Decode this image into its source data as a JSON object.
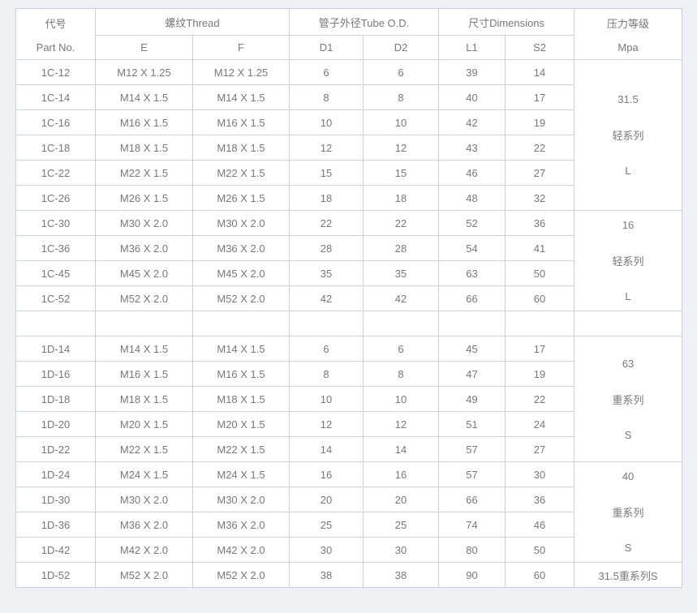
{
  "page": {
    "background": "#edf1f5",
    "table_background": "#ffffff",
    "border_color": "#ccd1d6",
    "text_color": "#787878"
  },
  "table": {
    "header": {
      "part_no": [
        "代号",
        "Part No."
      ],
      "thread": "螺纹Thread",
      "tube_od": "管子外径Tube O.D.",
      "dimensions": "尺寸Dimensions",
      "pressure": [
        "压力等级",
        "Mpa"
      ],
      "sub": [
        "E",
        "F",
        "D1",
        "D2",
        "L1",
        "S2"
      ]
    },
    "rows": [
      {
        "part": "1C-12",
        "e": "M12 X 1.25",
        "f": "M12 X 1.25",
        "d1": "6",
        "d2": "6",
        "l1": "39",
        "s2": "14",
        "pressure": {
          "rowspan": 6,
          "lines": [
            "31.5",
            "轻系列",
            "L"
          ]
        }
      },
      {
        "part": "1C-14",
        "e": "M14 X 1.5",
        "f": "M14 X 1.5",
        "d1": "8",
        "d2": "8",
        "l1": "40",
        "s2": "17"
      },
      {
        "part": "1C-16",
        "e": "M16 X 1.5",
        "f": "M16 X 1.5",
        "d1": "10",
        "d2": "10",
        "l1": "42",
        "s2": "19"
      },
      {
        "part": "1C-18",
        "e": "M18 X 1.5",
        "f": "M18 X 1.5",
        "d1": "12",
        "d2": "12",
        "l1": "43",
        "s2": "22"
      },
      {
        "part": "1C-22",
        "e": "M22 X 1.5",
        "f": "M22 X 1.5",
        "d1": "15",
        "d2": "15",
        "l1": "46",
        "s2": "27"
      },
      {
        "part": "1C-26",
        "e": "M26 X 1.5",
        "f": "M26 X 1.5",
        "d1": "18",
        "d2": "18",
        "l1": "48",
        "s2": "32"
      },
      {
        "part": "1C-30",
        "e": "M30 X 2.0",
        "f": "M30 X 2.0",
        "d1": "22",
        "d2": "22",
        "l1": "52",
        "s2": "36",
        "pressure": {
          "rowspan": 4,
          "lines": [
            "16",
            "轻系列",
            "L"
          ]
        }
      },
      {
        "part": "1C-36",
        "e": "M36 X 2.0",
        "f": "M36 X 2.0",
        "d1": "28",
        "d2": "28",
        "l1": "54",
        "s2": "41"
      },
      {
        "part": "1C-45",
        "e": "M45 X 2.0",
        "f": "M45 X 2.0",
        "d1": "35",
        "d2": "35",
        "l1": "63",
        "s2": "50"
      },
      {
        "part": "1C-52",
        "e": "M52 X 2.0",
        "f": "M52 X 2.0",
        "d1": "42",
        "d2": "42",
        "l1": "66",
        "s2": "60"
      },
      {
        "part": "",
        "e": "",
        "f": "",
        "d1": "",
        "d2": "",
        "l1": "",
        "s2": "",
        "pressure": {
          "rowspan": 1,
          "lines": []
        }
      },
      {
        "part": "1D-14",
        "e": "M14 X 1.5",
        "f": "M14 X 1.5",
        "d1": "6",
        "d2": "6",
        "l1": "45",
        "s2": "17",
        "pressure": {
          "rowspan": 5,
          "lines": [
            "63",
            "重系列",
            "S"
          ]
        }
      },
      {
        "part": "1D-16",
        "e": "M16 X 1.5",
        "f": "M16 X 1.5",
        "d1": "8",
        "d2": "8",
        "l1": "47",
        "s2": "19"
      },
      {
        "part": "1D-18",
        "e": "M18 X 1.5",
        "f": "M18 X 1.5",
        "d1": "10",
        "d2": "10",
        "l1": "49",
        "s2": "22"
      },
      {
        "part": "1D-20",
        "e": "M20 X 1.5",
        "f": "M20 X 1.5",
        "d1": "12",
        "d2": "12",
        "l1": "51",
        "s2": "24"
      },
      {
        "part": "1D-22",
        "e": "M22 X 1.5",
        "f": "M22 X 1.5",
        "d1": "14",
        "d2": "14",
        "l1": "57",
        "s2": "27"
      },
      {
        "part": "1D-24",
        "e": "M24 X 1.5",
        "f": "M24 X 1.5",
        "d1": "16",
        "d2": "16",
        "l1": "57",
        "s2": "30",
        "pressure": {
          "rowspan": 4,
          "lines": [
            "40",
            "重系列",
            "S"
          ]
        }
      },
      {
        "part": "1D-30",
        "e": "M30 X 2.0",
        "f": "M30 X 2.0",
        "d1": "20",
        "d2": "20",
        "l1": "66",
        "s2": "36"
      },
      {
        "part": "1D-36",
        "e": "M36 X 2.0",
        "f": "M36 X 2.0",
        "d1": "25",
        "d2": "25",
        "l1": "74",
        "s2": "46"
      },
      {
        "part": "1D-42",
        "e": "M42 X 2.0",
        "f": "M42 X 2.0",
        "d1": "30",
        "d2": "30",
        "l1": "80",
        "s2": "50"
      },
      {
        "part": "1D-52",
        "e": "M52 X 2.0",
        "f": "M52 X 2.0",
        "d1": "38",
        "d2": "38",
        "l1": "90",
        "s2": "60",
        "pressure": {
          "rowspan": 1,
          "lines": [
            "31.5重系列S"
          ]
        }
      }
    ]
  }
}
